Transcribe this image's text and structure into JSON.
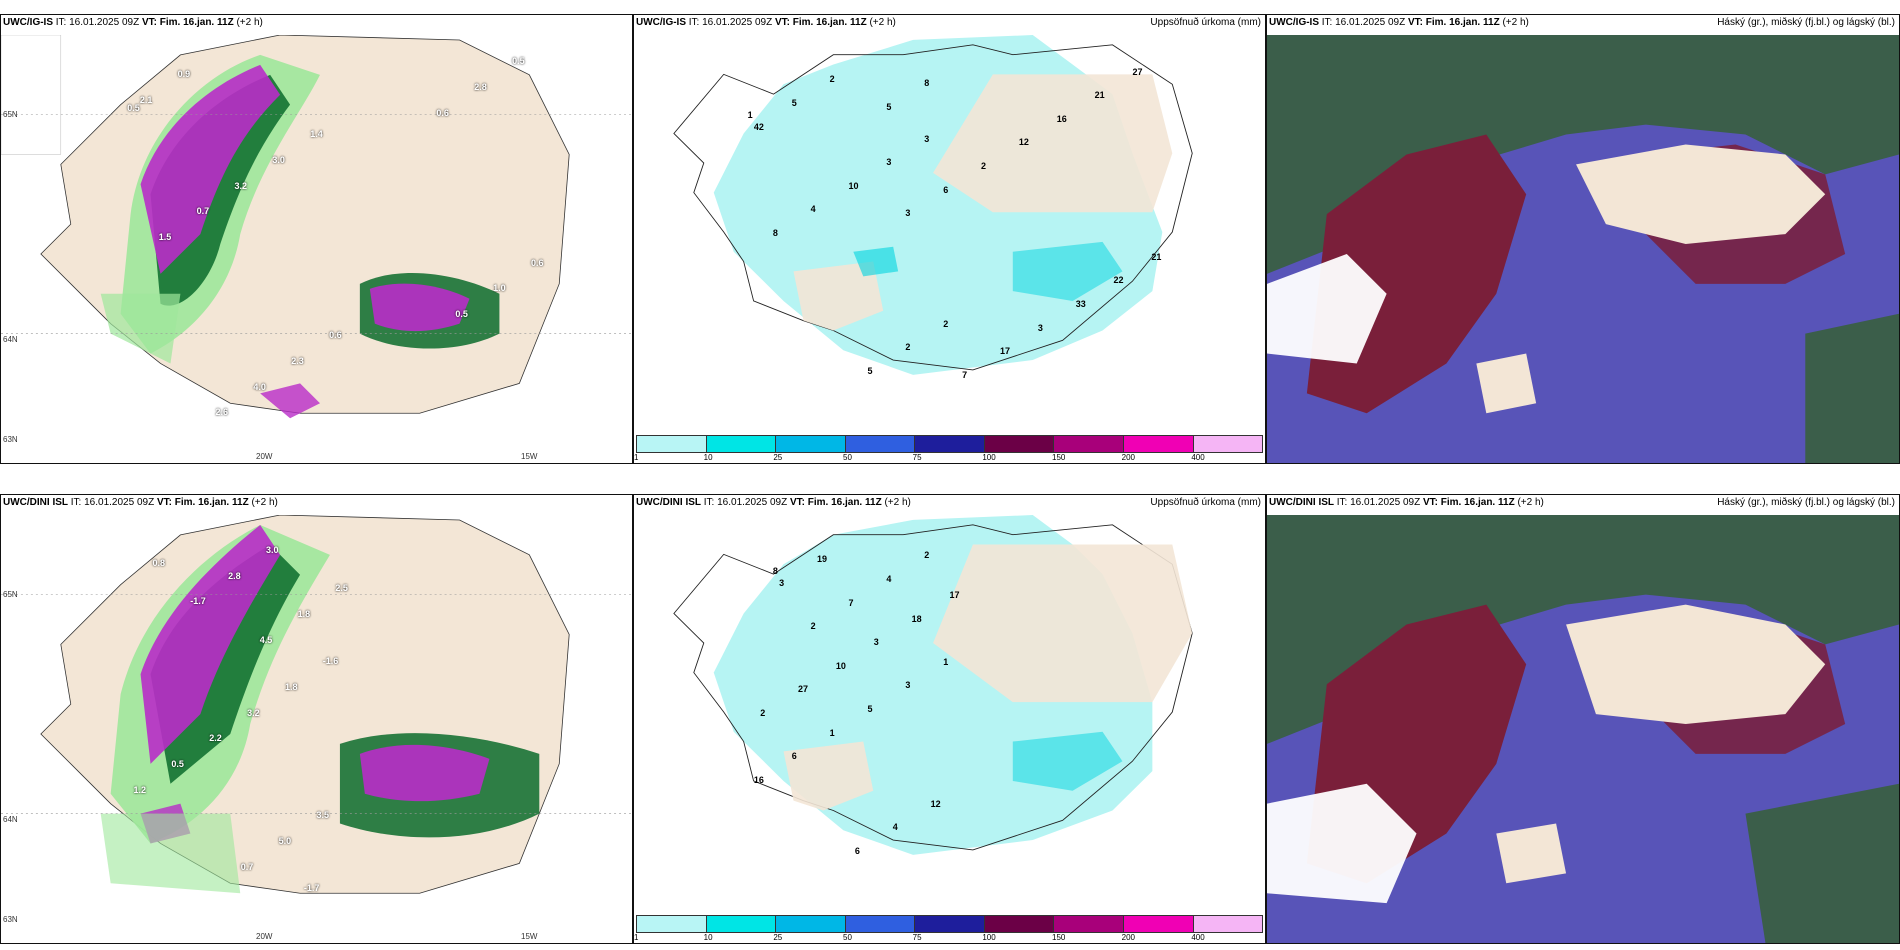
{
  "rows": [
    {
      "model": "UWC/IG-IS",
      "it_label": "IT:",
      "it_value": "16.01.2025 09Z",
      "vt_label": "VT:",
      "vt_value": "Fim. 16.jan. 11Z",
      "lead": "(+2 h)",
      "panel2_right": "Uppsöfnuð úrkoma (mm)",
      "panel3_right": "Háský (gr.), miðský (fj.bl.) og lágský (bl.)",
      "lat_labels": [
        "65N",
        "64N",
        "63N"
      ],
      "lon_labels": [
        "20W",
        "15W"
      ],
      "snow_values": [
        "0.5",
        "0.6",
        "1.4",
        "2.3",
        "3.0",
        "4.0",
        "3.2",
        "2.6",
        "0.7",
        "0.9",
        "1.5",
        "2.1",
        "0.6",
        "0.5",
        "1.0",
        "2.8",
        "0.5",
        "0.6"
      ],
      "precip_values": [
        "1",
        "2",
        "3",
        "2",
        "3",
        "5",
        "10",
        "2",
        "4",
        "5",
        "8",
        "42",
        "21",
        "27",
        "22",
        "21",
        "33",
        "16",
        "3",
        "12",
        "17",
        "2",
        "7",
        "6",
        "8",
        "3",
        "5"
      ]
    },
    {
      "model": "UWC/DINI ISL",
      "it_label": "IT:",
      "it_value": "16.01.2025 09Z",
      "vt_label": "VT:",
      "vt_value": "Fim. 16.jan. 11Z",
      "lead": "(+2 h)",
      "panel2_right": "Uppsöfnuð úrkoma (mm)",
      "panel3_right": "Háský (gr.), miðský (fj.bl.) og lágský (bl.)",
      "lat_labels": [
        "65N",
        "64N",
        "63N"
      ],
      "lon_labels": [
        "20W",
        "15W"
      ],
      "snow_values": [
        "-1.6",
        "-1.7",
        "1.8",
        "3.0",
        "3.2",
        "2.8",
        "2.2",
        "-1.7",
        "0.5",
        "0.8",
        "1.2",
        "2.5",
        "3.5",
        "1.8",
        "5.0",
        "4.5",
        "0.7"
      ],
      "precip_values": [
        "1",
        "2",
        "3",
        "4",
        "5",
        "7",
        "1",
        "2",
        "6",
        "8",
        "16",
        "17",
        "12",
        "18",
        "4",
        "3",
        "6",
        "10",
        "19",
        "27",
        "3",
        "2"
      ]
    }
  ],
  "colorbar": {
    "ticks": [
      "1",
      "10",
      "25",
      "50",
      "75",
      "100",
      "150",
      "200",
      "400"
    ],
    "colors": [
      "#b8f5f5",
      "#00e5e5",
      "#00b7e6",
      "#2f5fe0",
      "#1e1e9c",
      "#6b0046",
      "#a8007a",
      "#f000b4",
      "#f5b5f5"
    ]
  },
  "colors": {
    "land": "#f3e6d6",
    "light_precip": "#b6f4f3",
    "green_light": "#9ee79b",
    "green_dark": "#0b6b2c",
    "magenta": "#b92cc8",
    "cloud_high": "#3b5e4a",
    "cloud_mid": "#7a1f3a",
    "cloud_low": "#5854b8"
  }
}
